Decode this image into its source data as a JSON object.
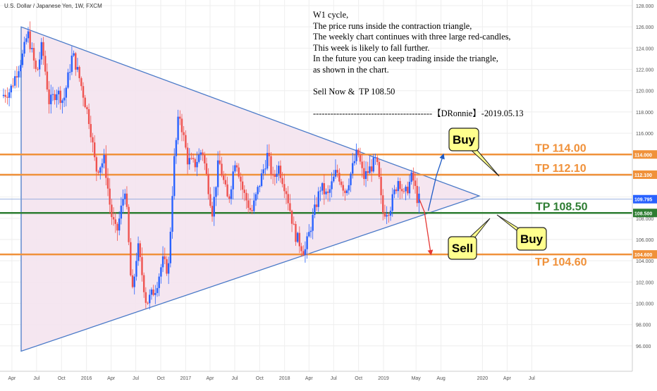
{
  "header": {
    "symbol_label": "U.S. Dollar / Japanese Yen, 1W, FXCM"
  },
  "note_lines": [
    "W1 cycle,",
    "The price runs inside the contraction triangle,",
    "The weekly chart continues with three large red-candles,",
    "This week is likely to fall further.",
    "In the future you can keep trading inside the triangle,",
    "as shown in the chart.",
    "",
    "Sell Now &  TP 108.50",
    "",
    "-----------------------------------------【DRonnie】-2019.05.13"
  ],
  "colors": {
    "up": "#2962ff",
    "down": "#ef5350",
    "triangle_line": "#4a7ac8",
    "triangle_fill": "#f4e3ee",
    "orange": "#f0913a",
    "green": "#2e7d32",
    "blue_arrow": "#1e5bc6",
    "red_arrow": "#e53935",
    "callout_fill": "#ffff8d",
    "grid": "#eeeeee"
  },
  "chart_data": {
    "type": "candlestick",
    "ylim": [
      95,
      128
    ],
    "y_ticks": [
      "128.000",
      "126.000",
      "124.000",
      "122.000",
      "120.000",
      "118.000",
      "116.000",
      "114.000",
      "112.000",
      "110.000",
      "108.000",
      "106.000",
      "104.000",
      "102.000",
      "100.000",
      "98.000",
      "96.000"
    ],
    "y_tick_values": [
      128,
      126,
      124,
      122,
      120,
      118,
      116,
      114,
      112,
      110,
      108,
      106,
      104,
      102,
      100,
      98,
      96
    ],
    "x_start": "2015-03-01",
    "x_end": "2021-08-15",
    "x_ticks": [
      {
        "label": "Apr",
        "date": "2015-04-01"
      },
      {
        "label": "Jul",
        "date": "2015-07-01"
      },
      {
        "label": "Oct",
        "date": "2015-10-01"
      },
      {
        "label": "2016",
        "date": "2016-01-01"
      },
      {
        "label": "Apr",
        "date": "2016-04-01"
      },
      {
        "label": "Jul",
        "date": "2016-07-01"
      },
      {
        "label": "Oct",
        "date": "2016-10-01"
      },
      {
        "label": "2017",
        "date": "2017-01-01"
      },
      {
        "label": "Apr",
        "date": "2017-04-01"
      },
      {
        "label": "Jul",
        "date": "2017-07-01"
      },
      {
        "label": "Oct",
        "date": "2017-10-01"
      },
      {
        "label": "2018",
        "date": "2018-01-01"
      },
      {
        "label": "Apr",
        "date": "2018-04-01"
      },
      {
        "label": "Jul",
        "date": "2018-07-01"
      },
      {
        "label": "Oct",
        "date": "2018-10-01"
      },
      {
        "label": "2019",
        "date": "2019-01-01"
      },
      {
        "label": "May",
        "date": "2019-05-01"
      },
      {
        "label": "Aug",
        "date": "2019-08-01"
      },
      {
        "label": "2020",
        "date": "2020-01-01"
      },
      {
        "label": "Apr",
        "date": "2020-04-01"
      },
      {
        "label": "Jul",
        "date": "2020-07-01"
      }
    ],
    "price_path": [
      {
        "date": "2015-03-01",
        "value": 119.5
      },
      {
        "date": "2015-04-01",
        "value": 120.0
      },
      {
        "date": "2015-05-20",
        "value": 123.5
      },
      {
        "date": "2015-06-05",
        "value": 125.5
      },
      {
        "date": "2015-07-08",
        "value": 121.5
      },
      {
        "date": "2015-07-28",
        "value": 124.3
      },
      {
        "date": "2015-08-24",
        "value": 118.8
      },
      {
        "date": "2015-09-20",
        "value": 120.0
      },
      {
        "date": "2015-10-15",
        "value": 119.0
      },
      {
        "date": "2015-11-18",
        "value": 123.5
      },
      {
        "date": "2015-12-15",
        "value": 121.0
      },
      {
        "date": "2016-01-20",
        "value": 117.0
      },
      {
        "date": "2016-02-12",
        "value": 112.5
      },
      {
        "date": "2016-03-14",
        "value": 113.5
      },
      {
        "date": "2016-04-07",
        "value": 108.5
      },
      {
        "date": "2016-04-28",
        "value": 106.5
      },
      {
        "date": "2016-05-30",
        "value": 111.0
      },
      {
        "date": "2016-06-24",
        "value": 100.5
      },
      {
        "date": "2016-07-15",
        "value": 105.5
      },
      {
        "date": "2016-08-16",
        "value": 100.0
      },
      {
        "date": "2016-09-20",
        "value": 101.5
      },
      {
        "date": "2016-10-15",
        "value": 104.0
      },
      {
        "date": "2016-11-05",
        "value": 103.0
      },
      {
        "date": "2016-11-25",
        "value": 113.0
      },
      {
        "date": "2016-12-15",
        "value": 118.0
      },
      {
        "date": "2017-01-15",
        "value": 113.5
      },
      {
        "date": "2017-02-10",
        "value": 113.0
      },
      {
        "date": "2017-03-10",
        "value": 114.5
      },
      {
        "date": "2017-04-17",
        "value": 108.5
      },
      {
        "date": "2017-05-10",
        "value": 113.5
      },
      {
        "date": "2017-06-14",
        "value": 109.5
      },
      {
        "date": "2017-07-11",
        "value": 113.8
      },
      {
        "date": "2017-08-08",
        "value": 110.5
      },
      {
        "date": "2017-09-08",
        "value": 108.5
      },
      {
        "date": "2017-11-06",
        "value": 114.0
      },
      {
        "date": "2017-11-27",
        "value": 111.5
      },
      {
        "date": "2017-12-15",
        "value": 113.0
      },
      {
        "date": "2018-01-15",
        "value": 110.5
      },
      {
        "date": "2018-02-15",
        "value": 106.5
      },
      {
        "date": "2018-03-23",
        "value": 104.8
      },
      {
        "date": "2018-04-20",
        "value": 107.8
      },
      {
        "date": "2018-05-21",
        "value": 111.0
      },
      {
        "date": "2018-06-15",
        "value": 110.0
      },
      {
        "date": "2018-07-19",
        "value": 112.5
      },
      {
        "date": "2018-08-20",
        "value": 110.5
      },
      {
        "date": "2018-10-04",
        "value": 114.3
      },
      {
        "date": "2018-10-26",
        "value": 111.8
      },
      {
        "date": "2018-12-12",
        "value": 113.5
      },
      {
        "date": "2018-12-26",
        "value": 111.0
      },
      {
        "date": "2019-01-03",
        "value": 108.5
      },
      {
        "date": "2019-01-31",
        "value": 108.9
      },
      {
        "date": "2019-03-05",
        "value": 111.8
      },
      {
        "date": "2019-03-25",
        "value": 110.0
      },
      {
        "date": "2019-04-24",
        "value": 112.0
      },
      {
        "date": "2019-05-13",
        "value": 109.8
      }
    ],
    "levels": [
      {
        "name": "TP 114.00",
        "value": 114.0,
        "tag": "114.000",
        "color": "orange"
      },
      {
        "name": "TP 112.10",
        "value": 112.1,
        "tag": "112.100",
        "color": "orange"
      },
      {
        "name": "TP 108.50",
        "value": 108.5,
        "tag": "108.500",
        "color": "green"
      },
      {
        "name": "TP 104.60",
        "value": 104.6,
        "tag": "104.600",
        "color": "orange"
      }
    ],
    "current_price": {
      "value": 109.795,
      "tag": "109.795"
    },
    "triangle": [
      {
        "date": "2015-05-05",
        "value": 126.0
      },
      {
        "date": "2015-05-05",
        "value": 95.5
      },
      {
        "date": "2019-12-20",
        "value": 110.1
      }
    ],
    "callouts": {
      "buy_top": "Buy",
      "buy_bottom": "Buy",
      "sell": "Sell"
    },
    "projection_arrows": [
      {
        "role": "buy-up",
        "from": {
          "date": "2019-06-15",
          "value": 108.7
        },
        "to": {
          "date": "2019-07-15",
          "value": 112.0
        },
        "color": "blue_arrow"
      },
      {
        "role": "buy-up-2",
        "from": {
          "date": "2019-07-15",
          "value": 112.0
        },
        "to": {
          "date": "2019-08-10",
          "value": 114.0
        },
        "color": "blue_arrow"
      },
      {
        "role": "sell-down",
        "from": {
          "date": "2019-05-13",
          "value": 109.8
        },
        "to": {
          "date": "2019-06-01",
          "value": 108.6
        },
        "color": "red_arrow"
      },
      {
        "role": "sell-down-2",
        "from": {
          "date": "2019-06-01",
          "value": 108.6
        },
        "to": {
          "date": "2019-06-25",
          "value": 104.6
        },
        "color": "red_arrow"
      }
    ]
  }
}
